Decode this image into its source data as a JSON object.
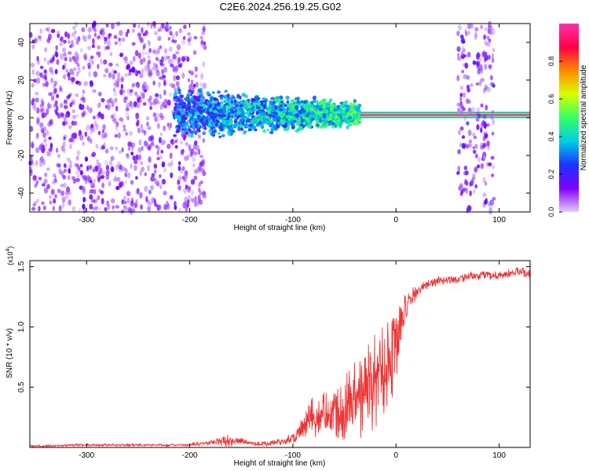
{
  "figure_title": "C2E6.2024.256.19.25.G02",
  "colors": {
    "snr_line": "#ee3333",
    "axis": "#000000",
    "colorbar_stops": [
      "#e6ccf5",
      "#8000ff",
      "#1a33ff",
      "#00cfe6",
      "#33ff66",
      "#d9ff00",
      "#ff8800",
      "#ff0044",
      "#ff33aa"
    ]
  },
  "chart_data": [
    {
      "type": "heatmap",
      "xlabel": "Height of straight line (km)",
      "ylabel": "Frequency (Hz)",
      "xlim": [
        -355,
        130
      ],
      "ylim": [
        -50,
        50
      ],
      "xticks": [
        -300,
        -200,
        -100,
        0,
        100
      ],
      "yticks": [
        -40,
        -20,
        0,
        20,
        40
      ],
      "xtick_labels": [
        "-300",
        "-200",
        "-100",
        "0",
        "100"
      ],
      "ytick_labels": [
        "-40",
        "-20",
        "0",
        "20",
        "40"
      ],
      "colorbar": {
        "label": "Normalized spectral amplitude",
        "range": [
          0,
          1
        ],
        "ticks": [
          0.0,
          0.2,
          0.4,
          0.6,
          0.8
        ],
        "tick_labels": [
          "0.0",
          "0.2",
          "0.4",
          "0.6",
          "0.8"
        ]
      },
      "features": [
        {
          "name": "noise",
          "x_range": [
            -355,
            -185
          ],
          "freq_range": [
            -50,
            50
          ],
          "amplitude": 0.1
        },
        {
          "name": "broad_band",
          "x_range": [
            -215,
            -35
          ],
          "freq_range": [
            -15,
            15
          ],
          "amplitude": 0.35
        },
        {
          "name": "carrier",
          "x_range": [
            -35,
            130
          ],
          "freq": 1.5,
          "amplitude": 1.0
        },
        {
          "name": "noise",
          "x_range": [
            60,
            95
          ],
          "freq_range": [
            -50,
            50
          ],
          "amplitude": 0.12
        }
      ]
    },
    {
      "type": "line",
      "xlabel": "Height of straight line (km)",
      "ylabel": "SNR (10 * v/v)",
      "scale_label": "(x10",
      "scale_exp": "4",
      "scale_close": ")",
      "xlim": [
        -355,
        130
      ],
      "ylim": [
        0,
        1.55
      ],
      "xticks": [
        -300,
        -200,
        -100,
        0,
        100
      ],
      "yticks": [
        0.5,
        1.0,
        1.5
      ],
      "xtick_labels": [
        "-300",
        "-200",
        "-100",
        "0",
        "100"
      ],
      "ytick_labels": [
        "0.5",
        "1.0",
        "1.5"
      ],
      "series": [
        {
          "x": [
            -355,
            -300,
            -250,
            -200,
            -180,
            -160,
            -150,
            -130,
            -110,
            -100,
            -80,
            -60,
            -50,
            -40,
            -30,
            -20,
            -10,
            0,
            10,
            20,
            30,
            40,
            50,
            60,
            70,
            80,
            90,
            100,
            110,
            120,
            130
          ],
          "y": [
            0.01,
            0.02,
            0.02,
            0.02,
            0.04,
            0.06,
            0.05,
            0.03,
            0.05,
            0.08,
            0.25,
            0.3,
            0.35,
            0.4,
            0.45,
            0.55,
            0.7,
            0.9,
            1.15,
            1.3,
            1.35,
            1.38,
            1.39,
            1.4,
            1.42,
            1.42,
            1.43,
            1.43,
            1.44,
            1.46,
            1.45
          ],
          "spread": [
            0.01,
            0.01,
            0.01,
            0.01,
            0.02,
            0.06,
            0.03,
            0.02,
            0.03,
            0.05,
            0.2,
            0.22,
            0.3,
            0.35,
            0.4,
            0.45,
            0.4,
            0.45,
            0.12,
            0.06,
            0.04,
            0.04,
            0.04,
            0.04,
            0.04,
            0.04,
            0.04,
            0.04,
            0.04,
            0.05,
            0.04
          ]
        }
      ]
    }
  ]
}
